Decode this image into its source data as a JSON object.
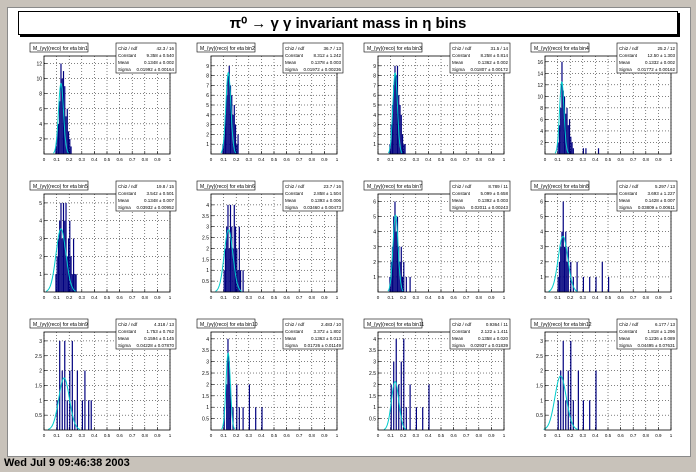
{
  "canvas": {
    "title": "π⁰ → γ γ invariant mass in η bins",
    "footer": "Wed Jul  9 09:46:38 2003"
  },
  "colors": {
    "frame_bg": "#c8c2ba",
    "hist": "#00007f",
    "fit": "#00cccc",
    "pad": "#ffffff"
  },
  "chart_data": [
    {
      "type": "bar",
      "title": "M_{γγ}(reco) for eta bin1",
      "xlim": [
        0,
        1
      ],
      "ylim": [
        0,
        13
      ],
      "yticks": [
        2,
        4,
        6,
        8,
        10,
        12
      ],
      "xticks": [
        "0",
        "0.1",
        "0.2",
        "0.3",
        "0.4",
        "0.5",
        "0.6",
        "0.7",
        "0.8",
        "0.9",
        "1"
      ],
      "stats": [
        [
          "Chi2 / ndf",
          "42.3 / 16"
        ],
        [
          "Constant",
          "9.358 ± 0.540"
        ],
        [
          "Mean",
          "0.1348 ± 0.002"
        ],
        [
          "Sigma",
          "0.01992 ± 0.00164"
        ]
      ],
      "bins_x": [
        0.08,
        0.09,
        0.1,
        0.11,
        0.12,
        0.13,
        0.14,
        0.15,
        0.16,
        0.17,
        0.18,
        0.19,
        0.2,
        0.21,
        0.22
      ],
      "bins_y": [
        0,
        1,
        3,
        4,
        7,
        12,
        10,
        11,
        9,
        5,
        6,
        3,
        2,
        1,
        0
      ],
      "fit": {
        "constant": 9.358,
        "mean": 0.1348,
        "sigma": 0.0199
      }
    },
    {
      "type": "bar",
      "title": "M_{γγ}(reco) for eta bin2",
      "xlim": [
        0,
        1
      ],
      "ylim": [
        0,
        10
      ],
      "yticks": [
        1,
        2,
        3,
        4,
        5,
        6,
        7,
        8,
        9
      ],
      "xticks": [
        "0",
        "0.1",
        "0.2",
        "0.3",
        "0.4",
        "0.5",
        "0.6",
        "0.7",
        "0.8",
        "0.9",
        "1"
      ],
      "stats": [
        [
          "Chi2 / ndf",
          "36.7 / 13"
        ],
        [
          "Constant",
          "8.312 ± 1.242"
        ],
        [
          "Mean",
          "0.1378 ± 0.003"
        ],
        [
          "Sigma",
          "0.01972 ± 0.00236"
        ]
      ],
      "bins_x": [
        0.08,
        0.09,
        0.1,
        0.11,
        0.12,
        0.13,
        0.14,
        0.15,
        0.16,
        0.17,
        0.18,
        0.19,
        0.2,
        0.21,
        0.22
      ],
      "bins_y": [
        0,
        1,
        2,
        4,
        6,
        8,
        9,
        7,
        6,
        4,
        5,
        3,
        1,
        2,
        0
      ],
      "fit": {
        "constant": 8.312,
        "mean": 0.1378,
        "sigma": 0.0197
      }
    },
    {
      "type": "bar",
      "title": "M_{γγ}(reco) for eta bin3",
      "xlim": [
        0,
        1
      ],
      "ylim": [
        0,
        10
      ],
      "yticks": [
        1,
        2,
        3,
        4,
        5,
        6,
        7,
        8,
        9
      ],
      "xticks": [
        "0",
        "0.1",
        "0.2",
        "0.3",
        "0.4",
        "0.5",
        "0.6",
        "0.7",
        "0.8",
        "0.9",
        "1"
      ],
      "stats": [
        [
          "Chi2 / ndf",
          "31.5 / 14"
        ],
        [
          "Constant",
          "8.258 ± 0.814"
        ],
        [
          "Mean",
          "0.1362 ± 0.002"
        ],
        [
          "Sigma",
          "0.01807 ± 0.00172"
        ]
      ],
      "bins_x": [
        0.08,
        0.09,
        0.1,
        0.11,
        0.12,
        0.13,
        0.14,
        0.15,
        0.16,
        0.17,
        0.18,
        0.19,
        0.2,
        0.21,
        0.22
      ],
      "bins_y": [
        0,
        1,
        3,
        5,
        7,
        9,
        8,
        9,
        6,
        5,
        4,
        2,
        1,
        1,
        0
      ],
      "fit": {
        "constant": 8.258,
        "mean": 0.1362,
        "sigma": 0.0181
      }
    },
    {
      "type": "bar",
      "title": "M_{γγ}(reco) for eta bin4",
      "xlim": [
        0,
        1
      ],
      "ylim": [
        0,
        17
      ],
      "yticks": [
        2,
        4,
        6,
        8,
        10,
        12,
        14,
        16
      ],
      "xticks": [
        "0",
        "0.1",
        "0.2",
        "0.3",
        "0.4",
        "0.5",
        "0.6",
        "0.7",
        "0.8",
        "0.9",
        "1"
      ],
      "stats": [
        [
          "Chi2 / ndf",
          "25.2 / 12"
        ],
        [
          "Constant",
          "12.50 ± 1.303"
        ],
        [
          "Mean",
          "0.1332 ± 0.002"
        ],
        [
          "Sigma",
          "0.01772 ± 0.00162"
        ]
      ],
      "bins_x": [
        0.09,
        0.1,
        0.11,
        0.12,
        0.13,
        0.14,
        0.15,
        0.16,
        0.17,
        0.18,
        0.19,
        0.2,
        0.21,
        0.22,
        0.3,
        0.32,
        0.42
      ],
      "bins_y": [
        0,
        2,
        5,
        8,
        16,
        11,
        10,
        7,
        8,
        5,
        6,
        3,
        2,
        1,
        1,
        1,
        1
      ],
      "fit": {
        "constant": 12.5,
        "mean": 0.1332,
        "sigma": 0.0177
      }
    },
    {
      "type": "bar",
      "title": "M_{γγ}(reco) for eta bin5",
      "xlim": [
        0,
        1
      ],
      "ylim": [
        0,
        5.5
      ],
      "yticks": [
        1,
        2,
        3,
        4,
        5
      ],
      "xticks": [
        "0",
        "0.1",
        "0.2",
        "0.3",
        "0.4",
        "0.5",
        "0.6",
        "0.7",
        "0.8",
        "0.9",
        "1"
      ],
      "stats": [
        [
          "Chi2 / ndf",
          "19.8 / 15"
        ],
        [
          "Constant",
          "3.542 ± 0.501"
        ],
        [
          "Mean",
          "0.1348 ± 0.007"
        ],
        [
          "Sigma",
          "0.03932 ± 0.00952"
        ]
      ],
      "bins_x": [
        0.08,
        0.09,
        0.1,
        0.11,
        0.12,
        0.13,
        0.14,
        0.15,
        0.16,
        0.17,
        0.18,
        0.19,
        0.2,
        0.21,
        0.22,
        0.23,
        0.24,
        0.25,
        0.26
      ],
      "bins_y": [
        0,
        1,
        2,
        3,
        4,
        5,
        3,
        5,
        4,
        5,
        2,
        3,
        4,
        2,
        1,
        3,
        1,
        1,
        0
      ],
      "fit": {
        "constant": 3.542,
        "mean": 0.1348,
        "sigma": 0.0393
      }
    },
    {
      "type": "bar",
      "title": "M_{γγ}(reco) for eta bin6",
      "xlim": [
        0,
        1
      ],
      "ylim": [
        0,
        4.5
      ],
      "yticks": [
        0.5,
        1,
        1.5,
        2,
        2.5,
        3,
        3.5,
        4
      ],
      "xticks": [
        "0",
        "0.1",
        "0.2",
        "0.3",
        "0.4",
        "0.5",
        "0.6",
        "0.7",
        "0.8",
        "0.9",
        "1"
      ],
      "stats": [
        [
          "Chi2 / ndf",
          "23.7 / 16"
        ],
        [
          "Constant",
          "2.858 ± 1.504"
        ],
        [
          "Mean",
          "0.1393 ± 0.006"
        ],
        [
          "Sigma",
          "0.03460 ± 0.00473"
        ]
      ],
      "bins_x": [
        0.08,
        0.1,
        0.11,
        0.12,
        0.13,
        0.14,
        0.15,
        0.16,
        0.17,
        0.18,
        0.19,
        0.2,
        0.21,
        0.22,
        0.23,
        0.25,
        0.27
      ],
      "bins_y": [
        0,
        1,
        2,
        3,
        4,
        2,
        4,
        3,
        2,
        4,
        3,
        2,
        1,
        3,
        1,
        1,
        0
      ],
      "fit": {
        "constant": 2.858,
        "mean": 0.1393,
        "sigma": 0.0346
      }
    },
    {
      "type": "bar",
      "title": "M_{γγ}(reco) for eta bin7",
      "xlim": [
        0,
        1
      ],
      "ylim": [
        0,
        6.5
      ],
      "yticks": [
        1,
        2,
        3,
        4,
        5,
        6
      ],
      "xticks": [
        "0",
        "0.1",
        "0.2",
        "0.3",
        "0.4",
        "0.5",
        "0.6",
        "0.7",
        "0.8",
        "0.9",
        "1"
      ],
      "stats": [
        [
          "Chi2 / ndf",
          "8.789 / 11"
        ],
        [
          "Constant",
          "5.099 ± 0.658"
        ],
        [
          "Mean",
          "0.1392 ± 0.003"
        ],
        [
          "Sigma",
          "0.02011 ± 0.00243"
        ]
      ],
      "bins_x": [
        0.08,
        0.09,
        0.1,
        0.11,
        0.12,
        0.13,
        0.14,
        0.15,
        0.16,
        0.17,
        0.18,
        0.19,
        0.2,
        0.22,
        0.25,
        0.3
      ],
      "bins_y": [
        0,
        1,
        2,
        3,
        5,
        6,
        4,
        5,
        3,
        2,
        3,
        1,
        2,
        1,
        1,
        0
      ],
      "fit": {
        "constant": 5.099,
        "mean": 0.1392,
        "sigma": 0.0201
      }
    },
    {
      "type": "bar",
      "title": "M_{γγ}(reco) for eta bin8",
      "xlim": [
        0,
        1
      ],
      "ylim": [
        0,
        6.5
      ],
      "yticks": [
        1,
        2,
        3,
        4,
        5,
        6
      ],
      "xticks": [
        "0",
        "0.1",
        "0.2",
        "0.3",
        "0.4",
        "0.5",
        "0.6",
        "0.7",
        "0.8",
        "0.9",
        "1"
      ],
      "stats": [
        [
          "Chi2 / ndf",
          "5.297 / 13"
        ],
        [
          "Constant",
          "3.693 ± 1.227"
        ],
        [
          "Mean",
          "0.1428 ± 0.007"
        ],
        [
          "Sigma",
          "0.03809 ± 0.00611"
        ]
      ],
      "bins_x": [
        0.08,
        0.1,
        0.11,
        0.12,
        0.13,
        0.14,
        0.15,
        0.16,
        0.17,
        0.18,
        0.2,
        0.22,
        0.25,
        0.3,
        0.35,
        0.4,
        0.45,
        0.5,
        0.55
      ],
      "bins_y": [
        0,
        1,
        2,
        3,
        4,
        6,
        3,
        4,
        2,
        3,
        2,
        1,
        2,
        1,
        1,
        1,
        2,
        1,
        0
      ],
      "fit": {
        "constant": 3.693,
        "mean": 0.1428,
        "sigma": 0.0381
      }
    },
    {
      "type": "bar",
      "title": "M_{γγ}(reco) for eta bin9",
      "xlim": [
        0,
        1
      ],
      "ylim": [
        0,
        3.3
      ],
      "yticks": [
        0.5,
        1,
        1.5,
        2,
        2.5,
        3
      ],
      "xticks": [
        "0",
        "0.1",
        "0.2",
        "0.3",
        "0.4",
        "0.5",
        "0.6",
        "0.7",
        "0.8",
        "0.9",
        "1"
      ],
      "stats": [
        [
          "Chi2 / ndf",
          "4.318 / 13"
        ],
        [
          "Constant",
          "1.753 ± 0.762"
        ],
        [
          "Mean",
          "0.1594 ± 0.145"
        ],
        [
          "Sigma",
          "0.04228 ± 0.07870"
        ]
      ],
      "bins_x": [
        0.08,
        0.1,
        0.12,
        0.14,
        0.16,
        0.18,
        0.2,
        0.22,
        0.24,
        0.26,
        0.3,
        0.32,
        0.35,
        0.37,
        0.42
      ],
      "bins_y": [
        0,
        1,
        3,
        2,
        3,
        1,
        2,
        3,
        1,
        2,
        1,
        2,
        1,
        1,
        0
      ],
      "fit": {
        "constant": 1.753,
        "mean": 0.1594,
        "sigma": 0.0423
      }
    },
    {
      "type": "bar",
      "title": "M_{γγ}(reco) for eta bin10",
      "xlim": [
        0,
        1
      ],
      "ylim": [
        0,
        4.3
      ],
      "yticks": [
        0.5,
        1,
        1.5,
        2,
        2.5,
        3,
        3.5,
        4
      ],
      "xticks": [
        "0",
        "0.1",
        "0.2",
        "0.3",
        "0.4",
        "0.5",
        "0.6",
        "0.7",
        "0.8",
        "0.9",
        "1"
      ],
      "stats": [
        [
          "Chi2 / ndf",
          "2.483 / 10"
        ],
        [
          "Constant",
          "3.372 ± 1.802"
        ],
        [
          "Mean",
          "0.1363 ± 0.013"
        ],
        [
          "Sigma",
          "0.01726 ± 0.01149"
        ]
      ],
      "bins_x": [
        0.08,
        0.1,
        0.12,
        0.13,
        0.14,
        0.15,
        0.17,
        0.2,
        0.22,
        0.25,
        0.3,
        0.35,
        0.4,
        0.45
      ],
      "bins_y": [
        0,
        1,
        2,
        4,
        3,
        2,
        1,
        2,
        1,
        1,
        2,
        1,
        1,
        0
      ],
      "fit": {
        "constant": 3.372,
        "mean": 0.1363,
        "sigma": 0.0173
      }
    },
    {
      "type": "bar",
      "title": "M_{γγ}(reco) for eta bin11",
      "xlim": [
        0,
        1
      ],
      "ylim": [
        0,
        4.3
      ],
      "yticks": [
        0.5,
        1,
        1.5,
        2,
        2.5,
        3,
        3.5,
        4
      ],
      "xticks": [
        "0",
        "0.1",
        "0.2",
        "0.3",
        "0.4",
        "0.5",
        "0.6",
        "0.7",
        "0.8",
        "0.9",
        "1"
      ],
      "stats": [
        [
          "Chi2 / ndf",
          "0.9364 / 11"
        ],
        [
          "Constant",
          "2.122 ± 1.411"
        ],
        [
          "Mean",
          "0.1358 ± 0.020"
        ],
        [
          "Sigma",
          "0.02937 ± 0.01839"
        ]
      ],
      "bins_x": [
        0.08,
        0.1,
        0.12,
        0.14,
        0.16,
        0.18,
        0.2,
        0.22,
        0.25,
        0.3,
        0.35,
        0.4,
        0.47
      ],
      "bins_y": [
        0,
        2,
        3,
        4,
        2,
        3,
        4,
        1,
        2,
        1,
        1,
        2,
        0
      ],
      "fit": {
        "constant": 2.122,
        "mean": 0.1358,
        "sigma": 0.0294
      }
    },
    {
      "type": "bar",
      "title": "M_{γγ}(reco) for eta bin12",
      "xlim": [
        0,
        1
      ],
      "ylim": [
        0,
        3.3
      ],
      "yticks": [
        0.5,
        1,
        1.5,
        2,
        2.5,
        3
      ],
      "xticks": [
        "0",
        "0.1",
        "0.2",
        "0.3",
        "0.4",
        "0.5",
        "0.6",
        "0.7",
        "0.8",
        "0.9",
        "1"
      ],
      "stats": [
        [
          "Chi2 / ndf",
          "6.177 / 13"
        ],
        [
          "Constant",
          "1.818 ± 1.296"
        ],
        [
          "Mean",
          "0.1236 ± 0.089"
        ],
        [
          "Sigma",
          "0.04495 ± 0.07631"
        ]
      ],
      "bins_x": [
        0.08,
        0.1,
        0.12,
        0.14,
        0.16,
        0.18,
        0.2,
        0.22,
        0.26,
        0.3,
        0.35,
        0.4,
        0.45
      ],
      "bins_y": [
        0,
        1,
        2,
        3,
        1,
        2,
        3,
        1,
        2,
        1,
        1,
        2,
        0
      ],
      "fit": {
        "constant": 1.818,
        "mean": 0.1236,
        "sigma": 0.045
      }
    }
  ]
}
